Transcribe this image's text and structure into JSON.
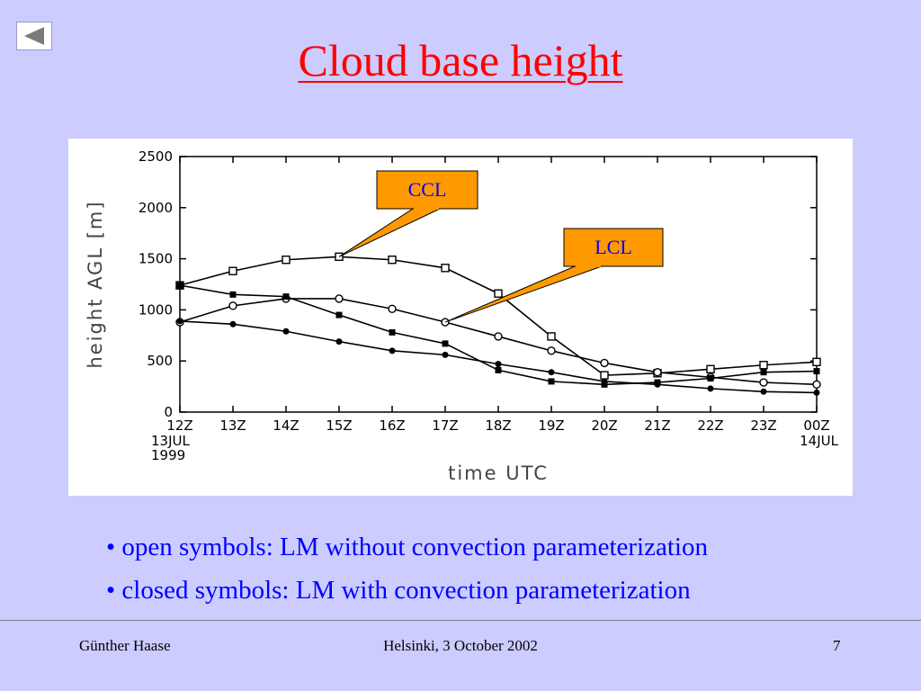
{
  "slide": {
    "title": "Cloud base height",
    "bullets": [
      "• open symbols: LM without convection parameterization",
      "• closed symbols: LM with convection parameterization"
    ],
    "footer": {
      "author": "Günther Haase",
      "event": "Helsinki, 3 October 2002",
      "page": "7"
    },
    "nav": {
      "back_icon": "triangle-left-icon"
    }
  },
  "colors": {
    "background": "#ccccff",
    "title": "#ff0000",
    "bullet_text": "#0000ff",
    "callout_fill": "#ff9900",
    "callout_text": "#0000ff"
  },
  "chart_data": {
    "type": "line",
    "ylabel": "height AGL [m]",
    "xlabel": "time UTC",
    "categories": [
      "12Z",
      "13Z",
      "14Z",
      "15Z",
      "16Z",
      "17Z",
      "18Z",
      "19Z",
      "20Z",
      "21Z",
      "22Z",
      "23Z",
      "00Z"
    ],
    "date_labels": {
      "start": [
        "13JUL",
        "1999"
      ],
      "end": [
        "14JUL"
      ]
    },
    "ylim": [
      0,
      2500
    ],
    "yticks": [
      0,
      500,
      1000,
      1500,
      2000,
      2500
    ],
    "series": [
      {
        "symbol": "open-square",
        "values": [
          1240,
          1380,
          1490,
          1520,
          1490,
          1410,
          1160,
          740,
          360,
          380,
          420,
          460,
          490
        ]
      },
      {
        "symbol": "open-circle",
        "values": [
          880,
          1040,
          1110,
          1110,
          1010,
          880,
          740,
          600,
          480,
          390,
          340,
          290,
          270
        ]
      },
      {
        "symbol": "closed-square",
        "values": [
          1240,
          1150,
          1130,
          950,
          780,
          670,
          410,
          300,
          270,
          290,
          330,
          390,
          400
        ]
      },
      {
        "symbol": "closed-circle",
        "values": [
          890,
          860,
          790,
          690,
          600,
          560,
          470,
          390,
          300,
          270,
          230,
          200,
          190
        ]
      }
    ],
    "annotations": [
      {
        "text": "CCL",
        "points_to": {
          "x": "15Z",
          "y": 1520
        }
      },
      {
        "text": "LCL",
        "points_to": {
          "x": "17Z",
          "y": 880
        }
      }
    ]
  }
}
